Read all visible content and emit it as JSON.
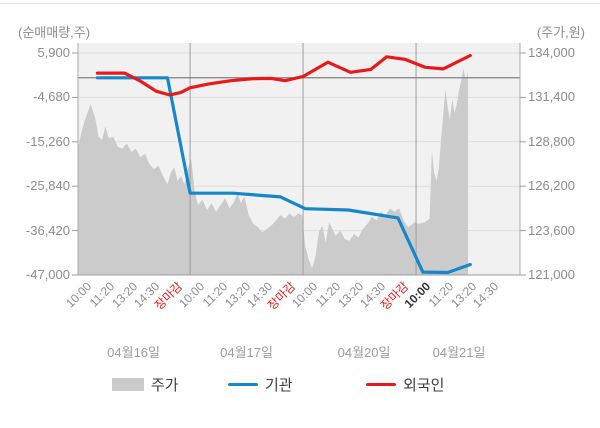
{
  "chart_data": {
    "type": "area+line",
    "title": "",
    "left_axis": {
      "title": "(순매매량,주)",
      "unit": "주",
      "max": 5900,
      "min": -47000,
      "tick_labels": [
        "5,900",
        "-4,680",
        "-15,260",
        "-25,840",
        "-36,420",
        "-47,000"
      ]
    },
    "right_axis": {
      "title": "(주가,원)",
      "unit": "원",
      "max": 134000,
      "min": 121000,
      "tick_labels": [
        "134,000",
        "131,400",
        "128,800",
        "126,200",
        "123,600",
        "121,000"
      ]
    },
    "x_axis": {
      "range": [
        -0.46,
        19.1
      ],
      "day_boundaries": [
        4.5,
        9.5,
        14.5
      ],
      "tick_labels": [
        {
          "t": 0,
          "label": "10:00",
          "style": "normal"
        },
        {
          "t": 1,
          "label": "11:20",
          "style": "normal"
        },
        {
          "t": 2,
          "label": "13:20",
          "style": "normal"
        },
        {
          "t": 3,
          "label": "14:30",
          "style": "normal"
        },
        {
          "t": 4,
          "label": "장마감",
          "style": "close"
        },
        {
          "t": 5,
          "label": "10:00",
          "style": "normal"
        },
        {
          "t": 6,
          "label": "11:20",
          "style": "normal"
        },
        {
          "t": 7,
          "label": "13:20",
          "style": "normal"
        },
        {
          "t": 8,
          "label": "14:30",
          "style": "normal"
        },
        {
          "t": 9,
          "label": "장마감",
          "style": "close"
        },
        {
          "t": 10,
          "label": "10:00",
          "style": "normal"
        },
        {
          "t": 11,
          "label": "11:20",
          "style": "normal"
        },
        {
          "t": 12,
          "label": "13:20",
          "style": "normal"
        },
        {
          "t": 13,
          "label": "14:30",
          "style": "normal"
        },
        {
          "t": 14,
          "label": "장마감",
          "style": "close"
        },
        {
          "t": 15,
          "label": "10:00",
          "style": "current"
        },
        {
          "t": 16,
          "label": "11:20",
          "style": "normal"
        },
        {
          "t": 17,
          "label": "13:20",
          "style": "normal"
        },
        {
          "t": 18,
          "label": "14:30",
          "style": "normal"
        }
      ],
      "day_labels": [
        {
          "label": "04월16일",
          "center_t": 2
        },
        {
          "label": "04월17일",
          "center_t": 7
        },
        {
          "label": "04월20일",
          "center_t": 12.2
        },
        {
          "label": "04월21일",
          "center_t": 16.4
        }
      ]
    },
    "zero_line_value": 0,
    "series": [
      {
        "name": "주가",
        "type": "area",
        "axis": "right",
        "color": "#cbcbcb",
        "points": [
          [
            -0.45,
            128500
          ],
          [
            -0.3,
            129400
          ],
          [
            -0.15,
            130100
          ],
          [
            0.1,
            131000
          ],
          [
            0.3,
            130200
          ],
          [
            0.45,
            129100
          ],
          [
            0.6,
            128900
          ],
          [
            0.75,
            129700
          ],
          [
            0.9,
            129000
          ],
          [
            1.1,
            129100
          ],
          [
            1.3,
            128500
          ],
          [
            1.5,
            128400
          ],
          [
            1.7,
            128700
          ],
          [
            1.9,
            128200
          ],
          [
            2.1,
            128400
          ],
          [
            2.3,
            127900
          ],
          [
            2.5,
            128100
          ],
          [
            2.7,
            127500
          ],
          [
            2.9,
            127200
          ],
          [
            3.1,
            127400
          ],
          [
            3.3,
            126800
          ],
          [
            3.5,
            126300
          ],
          [
            3.65,
            127000
          ],
          [
            3.8,
            127300
          ],
          [
            3.95,
            126500
          ],
          [
            4.1,
            126800
          ],
          [
            4.25,
            126300
          ],
          [
            4.4,
            127200
          ],
          [
            4.55,
            127800
          ],
          [
            4.7,
            125900
          ],
          [
            4.85,
            125100
          ],
          [
            5.05,
            125400
          ],
          [
            5.25,
            124800
          ],
          [
            5.45,
            125200
          ],
          [
            5.65,
            124700
          ],
          [
            5.85,
            125100
          ],
          [
            6.05,
            125500
          ],
          [
            6.25,
            124900
          ],
          [
            6.45,
            125300
          ],
          [
            6.6,
            125800
          ],
          [
            6.75,
            125200
          ],
          [
            6.9,
            125600
          ],
          [
            7.1,
            124500
          ],
          [
            7.3,
            124000
          ],
          [
            7.5,
            123800
          ],
          [
            7.7,
            123500
          ],
          [
            7.9,
            123700
          ],
          [
            8.1,
            123900
          ],
          [
            8.3,
            124200
          ],
          [
            8.5,
            124500
          ],
          [
            8.7,
            124300
          ],
          [
            8.9,
            124600
          ],
          [
            9.1,
            124400
          ],
          [
            9.3,
            124600
          ],
          [
            9.45,
            124500
          ],
          [
            9.6,
            122700
          ],
          [
            9.75,
            121900
          ],
          [
            9.9,
            121400
          ],
          [
            10.05,
            122100
          ],
          [
            10.2,
            123500
          ],
          [
            10.35,
            123900
          ],
          [
            10.5,
            122900
          ],
          [
            10.65,
            124100
          ],
          [
            10.8,
            123700
          ],
          [
            10.95,
            123300
          ],
          [
            11.15,
            123600
          ],
          [
            11.35,
            123100
          ],
          [
            11.55,
            123000
          ],
          [
            11.75,
            123400
          ],
          [
            11.95,
            123200
          ],
          [
            12.15,
            123700
          ],
          [
            12.35,
            124000
          ],
          [
            12.55,
            124400
          ],
          [
            12.75,
            124200
          ],
          [
            12.95,
            124700
          ],
          [
            13.15,
            124500
          ],
          [
            13.35,
            124900
          ],
          [
            13.55,
            124700
          ],
          [
            13.75,
            124900
          ],
          [
            13.95,
            124200
          ],
          [
            14.15,
            123800
          ],
          [
            14.35,
            124000
          ],
          [
            14.45,
            124100
          ],
          [
            14.6,
            124000
          ],
          [
            14.9,
            124100
          ],
          [
            15.1,
            124300
          ],
          [
            15.2,
            128300
          ],
          [
            15.3,
            127000
          ],
          [
            15.4,
            126500
          ],
          [
            15.5,
            127200
          ],
          [
            15.6,
            128800
          ],
          [
            15.7,
            130400
          ],
          [
            15.8,
            131900
          ],
          [
            15.9,
            130800
          ],
          [
            16.0,
            130100
          ],
          [
            16.1,
            131300
          ],
          [
            16.2,
            130500
          ],
          [
            16.3,
            131000
          ],
          [
            16.4,
            131800
          ],
          [
            16.5,
            132400
          ],
          [
            16.6,
            133100
          ],
          [
            16.7,
            132400
          ],
          [
            16.8,
            132900
          ]
        ]
      },
      {
        "name": "기관",
        "type": "line",
        "axis": "left",
        "color": "#1787cb",
        "points": [
          [
            0.4,
            0
          ],
          [
            3.5,
            0
          ],
          [
            4.5,
            -27500
          ],
          [
            6.4,
            -27500
          ],
          [
            8.5,
            -28400
          ],
          [
            9.6,
            -31200
          ],
          [
            11.5,
            -31500
          ],
          [
            13.7,
            -33400
          ],
          [
            14.8,
            -46300
          ],
          [
            15.9,
            -46400
          ],
          [
            16.9,
            -44500
          ]
        ]
      },
      {
        "name": "외국인",
        "type": "line",
        "axis": "left",
        "color": "#e8191a",
        "points": [
          [
            0.4,
            1100
          ],
          [
            1.6,
            1100
          ],
          [
            2.3,
            -800
          ],
          [
            3.0,
            -3200
          ],
          [
            3.6,
            -4100
          ],
          [
            4.1,
            -3500
          ],
          [
            4.5,
            -2400
          ],
          [
            5.3,
            -1500
          ],
          [
            6.3,
            -700
          ],
          [
            7.3,
            -200
          ],
          [
            8.1,
            -150
          ],
          [
            8.7,
            -700
          ],
          [
            9.5,
            300
          ],
          [
            10.6,
            3700
          ],
          [
            11.6,
            1300
          ],
          [
            12.5,
            2000
          ],
          [
            13.2,
            5000
          ],
          [
            14.0,
            4400
          ],
          [
            14.9,
            2500
          ],
          [
            15.7,
            2100
          ],
          [
            16.9,
            5300
          ]
        ]
      }
    ],
    "plot_style": {
      "background": "#f1f1f1",
      "gridline_color": "#dcdcdc",
      "day_line_color": "#9e9e9e",
      "zero_line_color": "#808080",
      "edge_color": "#aaaaaa"
    }
  },
  "legend": {
    "items": [
      {
        "label": "주가",
        "swatch": "area",
        "color": "#cbcbcb"
      },
      {
        "label": "기관",
        "swatch": "line",
        "color": "#1787cb"
      },
      {
        "label": "외국인",
        "swatch": "line",
        "color": "#e8191a"
      }
    ]
  }
}
